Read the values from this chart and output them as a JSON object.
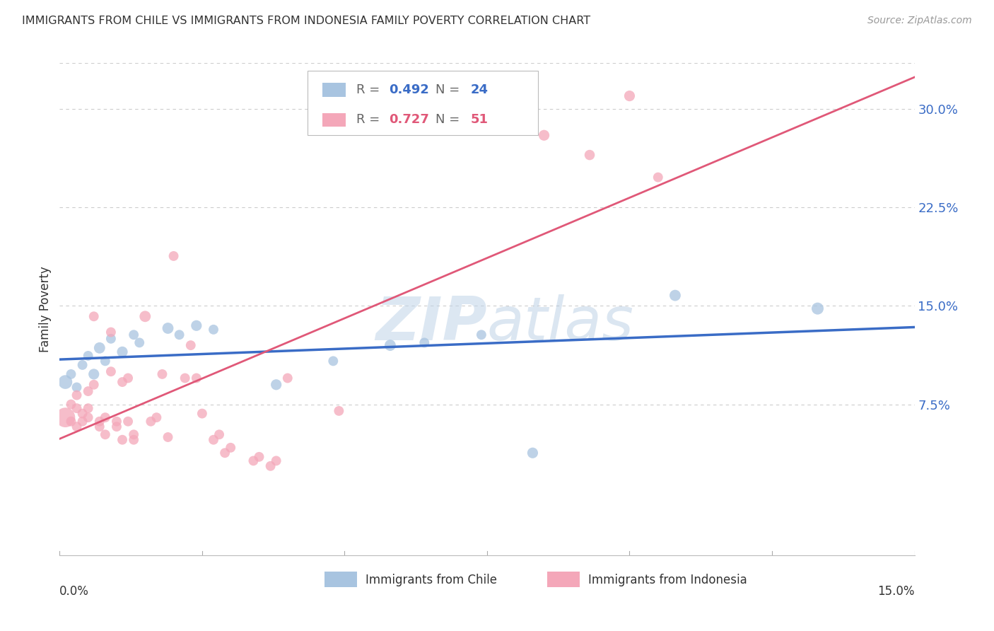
{
  "title": "IMMIGRANTS FROM CHILE VS IMMIGRANTS FROM INDONESIA FAMILY POVERTY CORRELATION CHART",
  "source": "Source: ZipAtlas.com",
  "ylabel": "Family Poverty",
  "yaxis_labels": [
    "7.5%",
    "15.0%",
    "22.5%",
    "30.0%"
  ],
  "yaxis_values": [
    0.075,
    0.15,
    0.225,
    0.3
  ],
  "xlim": [
    0.0,
    0.15
  ],
  "ylim": [
    -0.04,
    0.335
  ],
  "chile_R": 0.492,
  "chile_N": 24,
  "indonesia_R": 0.727,
  "indonesia_N": 51,
  "chile_color": "#a8c4e0",
  "chile_line_color": "#3a6cc6",
  "indonesia_color": "#f4a7b9",
  "indonesia_line_color": "#e05878",
  "watermark_color": "#d0dff0",
  "grid_color": "#cccccc",
  "chile_points": [
    [
      0.001,
      0.092,
      200
    ],
    [
      0.002,
      0.098,
      100
    ],
    [
      0.003,
      0.088,
      100
    ],
    [
      0.004,
      0.105,
      100
    ],
    [
      0.005,
      0.112,
      100
    ],
    [
      0.006,
      0.098,
      120
    ],
    [
      0.007,
      0.118,
      130
    ],
    [
      0.008,
      0.108,
      100
    ],
    [
      0.009,
      0.125,
      100
    ],
    [
      0.011,
      0.115,
      120
    ],
    [
      0.013,
      0.128,
      100
    ],
    [
      0.014,
      0.122,
      100
    ],
    [
      0.019,
      0.133,
      130
    ],
    [
      0.021,
      0.128,
      100
    ],
    [
      0.024,
      0.135,
      120
    ],
    [
      0.027,
      0.132,
      100
    ],
    [
      0.038,
      0.09,
      120
    ],
    [
      0.048,
      0.108,
      100
    ],
    [
      0.058,
      0.12,
      130
    ],
    [
      0.064,
      0.122,
      100
    ],
    [
      0.074,
      0.128,
      100
    ],
    [
      0.083,
      0.038,
      120
    ],
    [
      0.108,
      0.158,
      130
    ],
    [
      0.133,
      0.148,
      150
    ]
  ],
  "indonesia_points": [
    [
      0.001,
      0.065,
      400
    ],
    [
      0.002,
      0.075,
      100
    ],
    [
      0.002,
      0.062,
      100
    ],
    [
      0.003,
      0.082,
      100
    ],
    [
      0.003,
      0.058,
      100
    ],
    [
      0.003,
      0.072,
      100
    ],
    [
      0.004,
      0.068,
      100
    ],
    [
      0.004,
      0.062,
      100
    ],
    [
      0.005,
      0.085,
      100
    ],
    [
      0.005,
      0.072,
      100
    ],
    [
      0.005,
      0.065,
      100
    ],
    [
      0.006,
      0.142,
      100
    ],
    [
      0.006,
      0.09,
      100
    ],
    [
      0.007,
      0.058,
      100
    ],
    [
      0.007,
      0.062,
      100
    ],
    [
      0.008,
      0.052,
      100
    ],
    [
      0.008,
      0.065,
      100
    ],
    [
      0.009,
      0.13,
      100
    ],
    [
      0.009,
      0.1,
      100
    ],
    [
      0.01,
      0.058,
      100
    ],
    [
      0.01,
      0.062,
      100
    ],
    [
      0.011,
      0.048,
      100
    ],
    [
      0.011,
      0.092,
      100
    ],
    [
      0.012,
      0.095,
      100
    ],
    [
      0.012,
      0.062,
      100
    ],
    [
      0.013,
      0.048,
      100
    ],
    [
      0.013,
      0.052,
      100
    ],
    [
      0.015,
      0.142,
      130
    ],
    [
      0.016,
      0.062,
      100
    ],
    [
      0.017,
      0.065,
      100
    ],
    [
      0.018,
      0.098,
      100
    ],
    [
      0.019,
      0.05,
      100
    ],
    [
      0.02,
      0.188,
      100
    ],
    [
      0.022,
      0.095,
      100
    ],
    [
      0.023,
      0.12,
      100
    ],
    [
      0.024,
      0.095,
      100
    ],
    [
      0.025,
      0.068,
      100
    ],
    [
      0.027,
      0.048,
      100
    ],
    [
      0.028,
      0.052,
      100
    ],
    [
      0.029,
      0.038,
      100
    ],
    [
      0.03,
      0.042,
      100
    ],
    [
      0.034,
      0.032,
      100
    ],
    [
      0.035,
      0.035,
      100
    ],
    [
      0.037,
      0.028,
      100
    ],
    [
      0.038,
      0.032,
      100
    ],
    [
      0.04,
      0.095,
      100
    ],
    [
      0.049,
      0.07,
      100
    ],
    [
      0.085,
      0.28,
      120
    ],
    [
      0.093,
      0.265,
      110
    ],
    [
      0.1,
      0.31,
      120
    ],
    [
      0.105,
      0.248,
      100
    ]
  ]
}
